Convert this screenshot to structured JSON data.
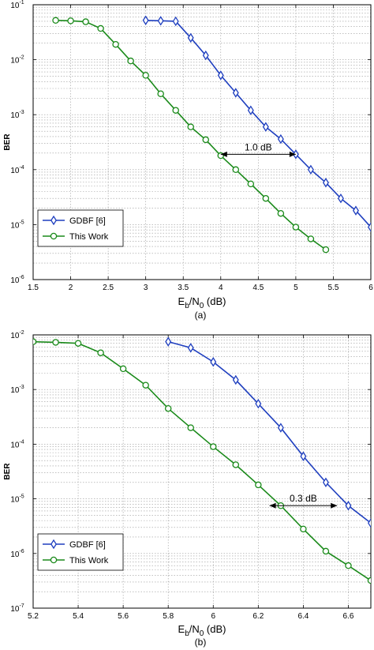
{
  "chart_data": [
    {
      "type": "line",
      "panel_label": "(a)",
      "xlabel": {
        "main": "E",
        "sub1": "b",
        "mid": "/N",
        "sub2": "0",
        "tail": " (dB)"
      },
      "ylabel": "BER",
      "xlim": [
        1.5,
        6
      ],
      "ylim": [
        1e-06,
        0.1
      ],
      "yscale": "log",
      "xticks": [
        "1.5",
        "2",
        "2.5",
        "3",
        "3.5",
        "4",
        "4.5",
        "5",
        "5.5",
        "6"
      ],
      "xtick_values": [
        1.5,
        2,
        2.5,
        3,
        3.5,
        4,
        4.5,
        5,
        5.5,
        6
      ],
      "yticks": [
        {
          "base": "10",
          "exp": "-6",
          "value": 1e-06
        },
        {
          "base": "10",
          "exp": "-5",
          "value": 1e-05
        },
        {
          "base": "10",
          "exp": "-4",
          "value": 0.0001
        },
        {
          "base": "10",
          "exp": "-3",
          "value": 0.001
        },
        {
          "base": "10",
          "exp": "-2",
          "value": 0.01
        },
        {
          "base": "10",
          "exp": "-1",
          "value": 0.1
        }
      ],
      "grid": true,
      "legend_position": "bottom-left",
      "series": [
        {
          "name": "GDBF [6]",
          "color": "#1f3fbf",
          "marker": "diamond",
          "x": [
            3.0,
            3.2,
            3.4,
            3.6,
            3.8,
            4.0,
            4.2,
            4.4,
            4.6,
            4.8,
            5.0,
            5.2,
            5.4,
            5.6,
            5.8,
            6.0
          ],
          "y": [
            0.052,
            0.051,
            0.05,
            0.025,
            0.012,
            0.0052,
            0.0025,
            0.0012,
            0.0006,
            0.00036,
            0.00019,
            0.0001,
            5.8e-05,
            3e-05,
            1.8e-05,
            9e-06
          ]
        },
        {
          "name": "This Work",
          "color": "#1a8a1a",
          "marker": "circle",
          "x": [
            1.8,
            2.0,
            2.2,
            2.4,
            2.6,
            2.8,
            3.0,
            3.2,
            3.4,
            3.6,
            3.8,
            4.0,
            4.2,
            4.4,
            4.6,
            4.8,
            5.0,
            5.2,
            5.4
          ],
          "y": [
            0.052,
            0.051,
            0.049,
            0.037,
            0.019,
            0.0095,
            0.0052,
            0.0024,
            0.0012,
            0.0006,
            0.00035,
            0.00018,
            0.0001,
            5.5e-05,
            3e-05,
            1.6e-05,
            9e-06,
            5.5e-06,
            3.5e-06
          ]
        }
      ],
      "annotation": {
        "text": "1.0 dB",
        "x_start": 4.0,
        "x_end": 5.0,
        "y": 0.00019
      }
    },
    {
      "type": "line",
      "panel_label": "(b)",
      "xlabel": {
        "main": "E",
        "sub1": "b",
        "mid": "/N",
        "sub2": "0",
        "tail": " (dB)"
      },
      "ylabel": "BER",
      "xlim": [
        5.2,
        6.7
      ],
      "ylim": [
        1e-07,
        0.01
      ],
      "yscale": "log",
      "xticks": [
        "5.2",
        "5.4",
        "5.6",
        "5.8",
        "6",
        "6.2",
        "6.4",
        "6.6"
      ],
      "xtick_values": [
        5.2,
        5.4,
        5.6,
        5.8,
        6.0,
        6.2,
        6.4,
        6.6
      ],
      "yticks": [
        {
          "base": "10",
          "exp": "-7",
          "value": 1e-07
        },
        {
          "base": "10",
          "exp": "-6",
          "value": 1e-06
        },
        {
          "base": "10",
          "exp": "-5",
          "value": 1e-05
        },
        {
          "base": "10",
          "exp": "-4",
          "value": 0.0001
        },
        {
          "base": "10",
          "exp": "-3",
          "value": 0.001
        },
        {
          "base": "10",
          "exp": "-2",
          "value": 0.01
        }
      ],
      "grid": true,
      "legend_position": "bottom-left",
      "series": [
        {
          "name": "GDBF [6]",
          "color": "#1f3fbf",
          "marker": "diamond",
          "x": [
            5.8,
            5.9,
            6.0,
            6.1,
            6.2,
            6.3,
            6.4,
            6.5,
            6.6,
            6.7
          ],
          "y": [
            0.0075,
            0.0058,
            0.0032,
            0.0015,
            0.00055,
            0.0002,
            6e-05,
            2e-05,
            7.5e-06,
            3.6e-06
          ]
        },
        {
          "name": "This Work",
          "color": "#1a8a1a",
          "marker": "circle",
          "x": [
            5.2,
            5.3,
            5.4,
            5.5,
            5.6,
            5.7,
            5.8,
            5.9,
            6.0,
            6.1,
            6.2,
            6.3,
            6.4,
            6.5,
            6.6,
            6.7
          ],
          "y": [
            0.0075,
            0.0073,
            0.007,
            0.0047,
            0.0024,
            0.0012,
            0.00045,
            0.0002,
            9e-05,
            4.2e-05,
            1.8e-05,
            7.5e-06,
            2.8e-06,
            1.1e-06,
            6e-07,
            3.2e-07
          ]
        }
      ],
      "annotation": {
        "text": "0.3 dB",
        "x_start": 6.25,
        "x_end": 6.55,
        "y": 7.5e-06
      }
    }
  ]
}
